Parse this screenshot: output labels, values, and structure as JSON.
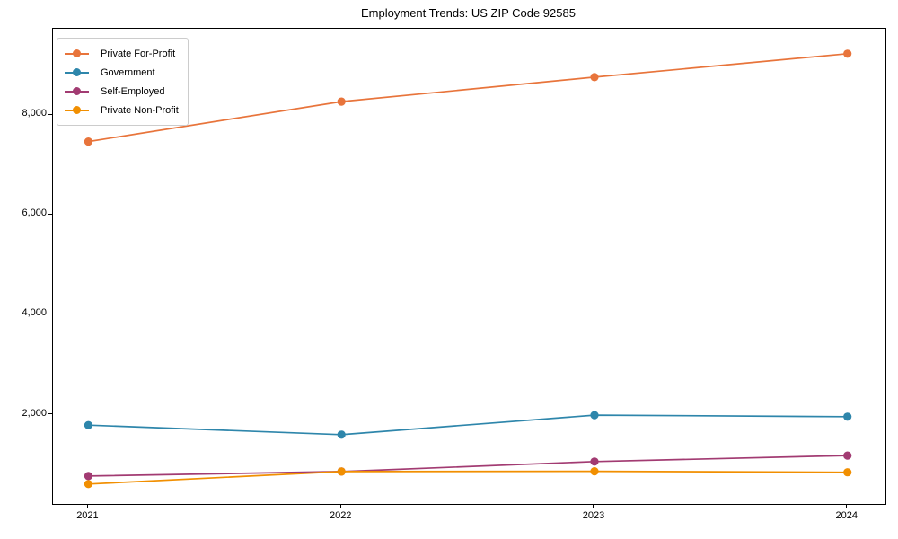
{
  "title": "Employment Trends: US ZIP Code 92585",
  "chart_data": {
    "type": "line",
    "title": "Employment Trends: US ZIP Code 92585",
    "x": [
      2021,
      2022,
      2023,
      2024
    ],
    "x_tick_labels": [
      "2021",
      "2022",
      "2023",
      "2024"
    ],
    "series": [
      {
        "name": "Private For-Profit",
        "color": "#E8743B",
        "values": [
          7470,
          8270,
          8760,
          9230
        ]
      },
      {
        "name": "Government",
        "color": "#2E86AB",
        "values": [
          1790,
          1600,
          1990,
          1960
        ]
      },
      {
        "name": "Self-Employed",
        "color": "#A23B72",
        "values": [
          770,
          860,
          1060,
          1180
        ]
      },
      {
        "name": "Private Non-Profit",
        "color": "#F18F01",
        "values": [
          610,
          860,
          865,
          845
        ]
      }
    ],
    "y_ticks": [
      {
        "value": 2000,
        "label": "2,000"
      },
      {
        "value": 4000,
        "label": "4,000"
      },
      {
        "value": 6000,
        "label": "6,000"
      },
      {
        "value": 8000,
        "label": "8,000"
      }
    ],
    "xlim": [
      2020.86,
      2024.15
    ],
    "ylim": [
      210,
      9730
    ],
    "xlabel": "",
    "ylabel": "",
    "grid": false,
    "marker": "circle",
    "legend_position": "upper-left"
  },
  "colors": {
    "axis": "#000000",
    "background": "#ffffff",
    "legend_border": "#cccccc",
    "text": "#000000"
  }
}
